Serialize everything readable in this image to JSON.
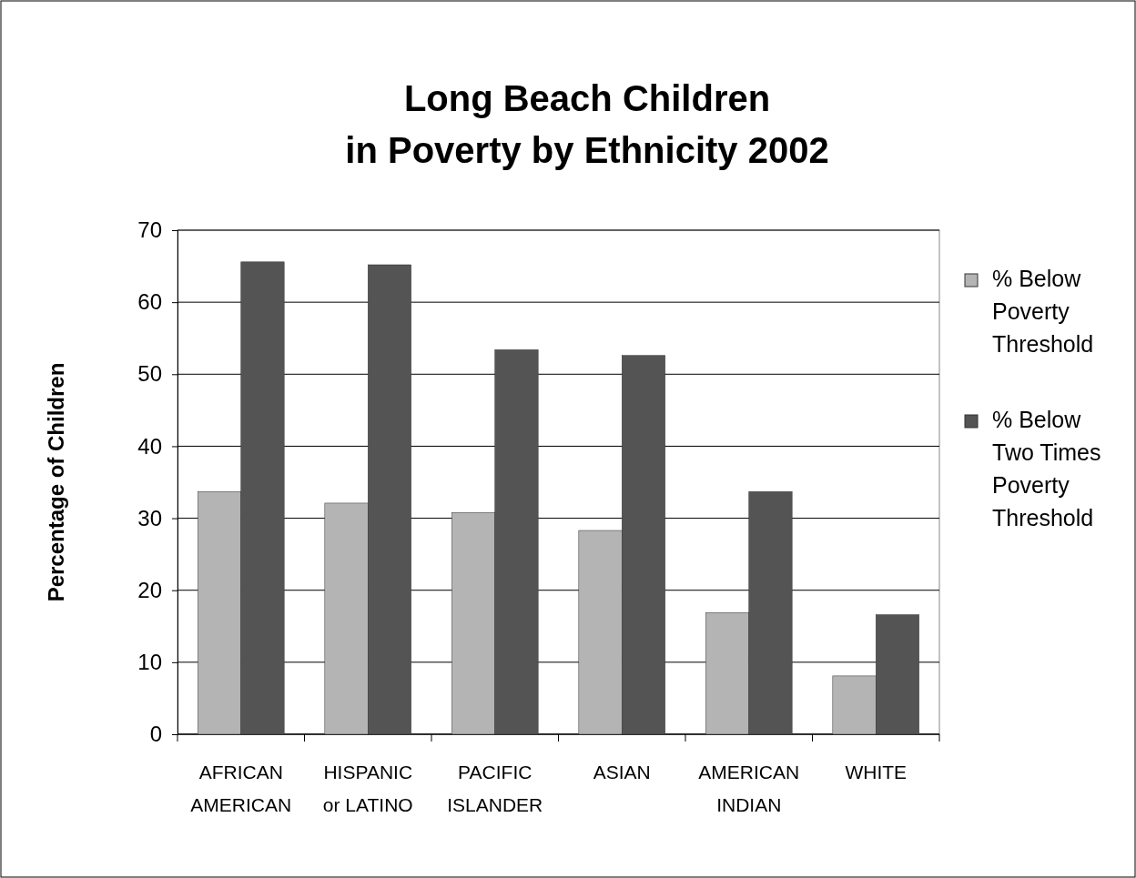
{
  "chart_data": {
    "type": "bar",
    "title": "Long Beach Children\nin Poverty by Ethnicity 2002",
    "ylabel": "Percentage of Children",
    "categories": [
      "AFRICAN\nAMERICAN",
      "HISPANIC\nor LATINO",
      "PACIFIC\nISLANDER",
      "ASIAN",
      "AMERICAN\nINDIAN",
      "WHITE"
    ],
    "series": [
      {
        "name": "% Below\nPoverty\nThreshold",
        "color": "#b4b4b4",
        "values": [
          33.7,
          32.1,
          30.8,
          28.3,
          16.9,
          8.1
        ]
      },
      {
        "name": "% Below\nTwo Times\nPoverty\nThreshold",
        "color": "#545454",
        "values": [
          65.6,
          65.2,
          53.4,
          52.6,
          33.7,
          16.6
        ]
      }
    ],
    "ylim": [
      0,
      70
    ],
    "yticks": [
      0,
      10,
      20,
      30,
      40,
      50,
      60,
      70
    ],
    "grid": "y",
    "legend": "right"
  }
}
